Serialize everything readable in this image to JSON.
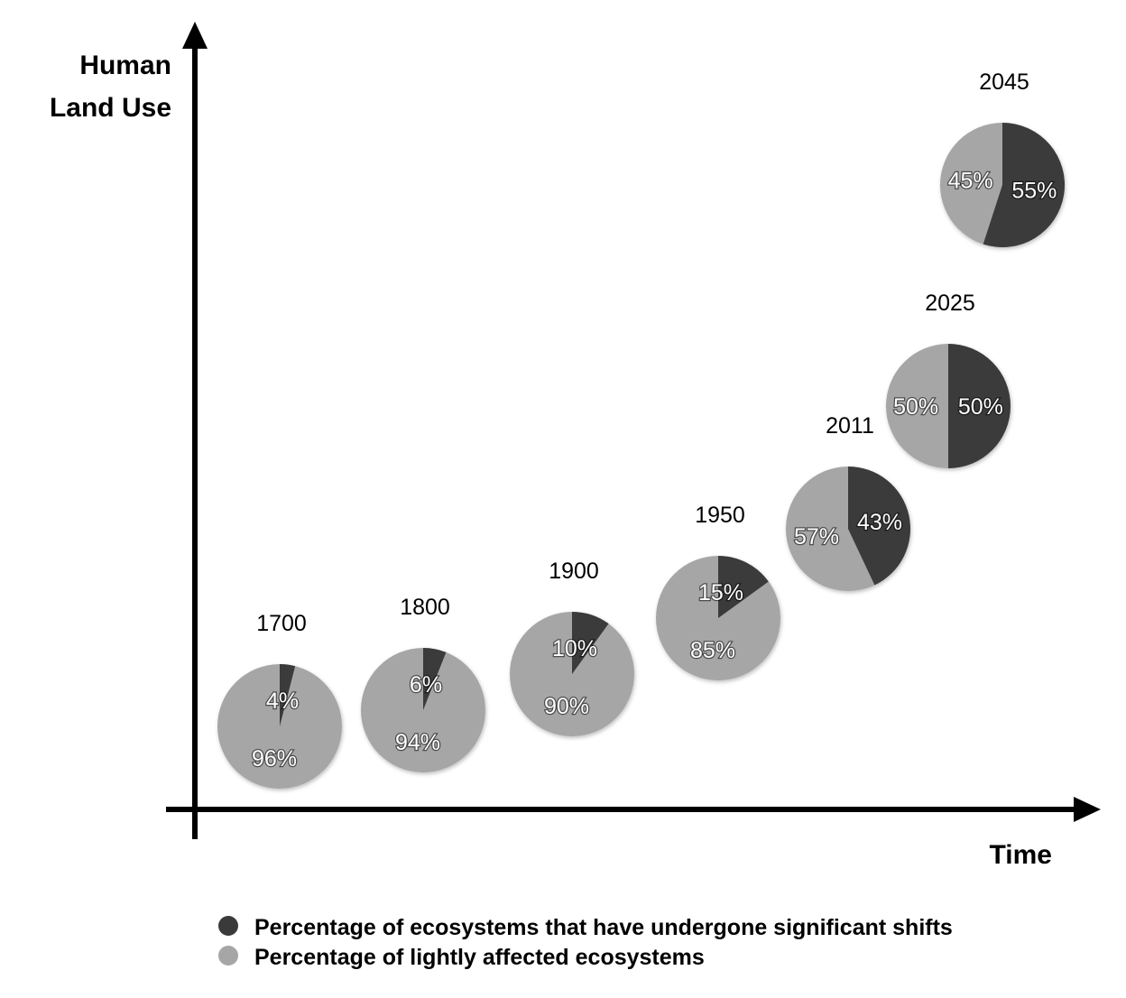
{
  "chart_data": {
    "type": "pie",
    "ylabel_lines": [
      "Human",
      "Land Use"
    ],
    "xlabel": "Time",
    "colors": {
      "significant": "#3a3a3a",
      "light": "#a6a6a6",
      "axis": "#000000"
    },
    "legend": [
      {
        "key": "significant",
        "label": "Percentage of ecosystems that have undergone significant shifts"
      },
      {
        "key": "light",
        "label": "Percentage of lightly affected ecosystems"
      }
    ],
    "points": [
      {
        "year": "1700",
        "significant": 4,
        "light": 96,
        "significant_label": "4%",
        "light_label": "96%"
      },
      {
        "year": "1800",
        "significant": 6,
        "light": 94,
        "significant_label": "6%",
        "light_label": "94%"
      },
      {
        "year": "1900",
        "significant": 10,
        "light": 90,
        "significant_label": "10%",
        "light_label": "90%"
      },
      {
        "year": "1950",
        "significant": 15,
        "light": 85,
        "significant_label": "15%",
        "light_label": "85%"
      },
      {
        "year": "2011",
        "significant": 43,
        "light": 57,
        "significant_label": "43%",
        "light_label": "57%"
      },
      {
        "year": "2025",
        "significant": 50,
        "light": 50,
        "significant_label": "50%",
        "light_label": "50%"
      },
      {
        "year": "2045",
        "significant": 55,
        "light": 45,
        "significant_label": "55%",
        "light_label": "45%"
      }
    ]
  }
}
